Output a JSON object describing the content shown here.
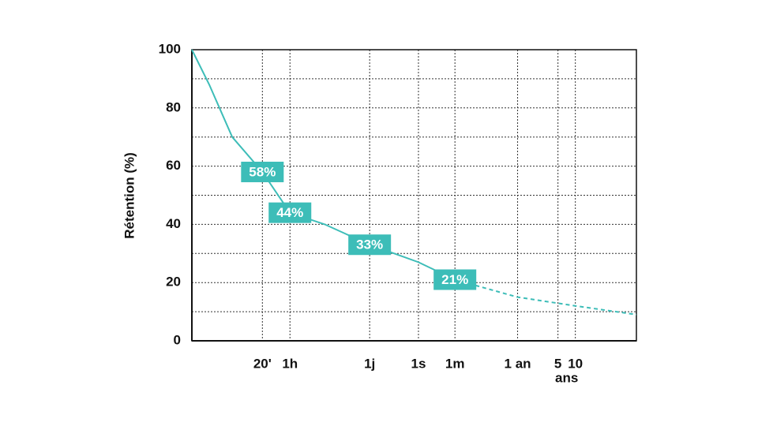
{
  "chart_data": {
    "type": "line",
    "ylabel": "Rétention (%)",
    "xscale": "log",
    "xlim": [
      0.02,
      1000000
    ],
    "xticks": [
      {
        "value": 0.333,
        "label": "20'"
      },
      {
        "value": 1,
        "label": "1h"
      },
      {
        "value": 24,
        "label": "1j"
      },
      {
        "value": 168,
        "label": "1s"
      },
      {
        "value": 720,
        "label": "1m"
      },
      {
        "value": 8760,
        "label": "1 an"
      },
      {
        "value": 43800,
        "label": "5"
      },
      {
        "value": 87600,
        "label": "10"
      }
    ],
    "x_note": "ans",
    "ylim": [
      0,
      100
    ],
    "yticks": [
      0,
      20,
      40,
      60,
      80,
      100
    ],
    "yminorticks": [
      10,
      30,
      50,
      70,
      90
    ],
    "grid": true,
    "series": [
      {
        "color": "#3dbdb8",
        "style": "solid",
        "x": [
          0.02,
          0.04,
          0.1,
          0.333,
          1,
          4,
          24,
          168,
          720
        ],
        "values": [
          100,
          88,
          70,
          58,
          44,
          40,
          33,
          27,
          21
        ]
      },
      {
        "color": "#3dbdb8",
        "style": "dashed",
        "x": [
          720,
          8760,
          87600,
          1000000
        ],
        "values": [
          21,
          15,
          12,
          9
        ]
      }
    ],
    "markers": {
      "color": "#3dbdb8",
      "x": [
        0.333,
        1,
        24,
        720
      ],
      "values": [
        58,
        44,
        33,
        21
      ],
      "value_labels": [
        "58%",
        "44%",
        "33%",
        "21%"
      ]
    }
  }
}
